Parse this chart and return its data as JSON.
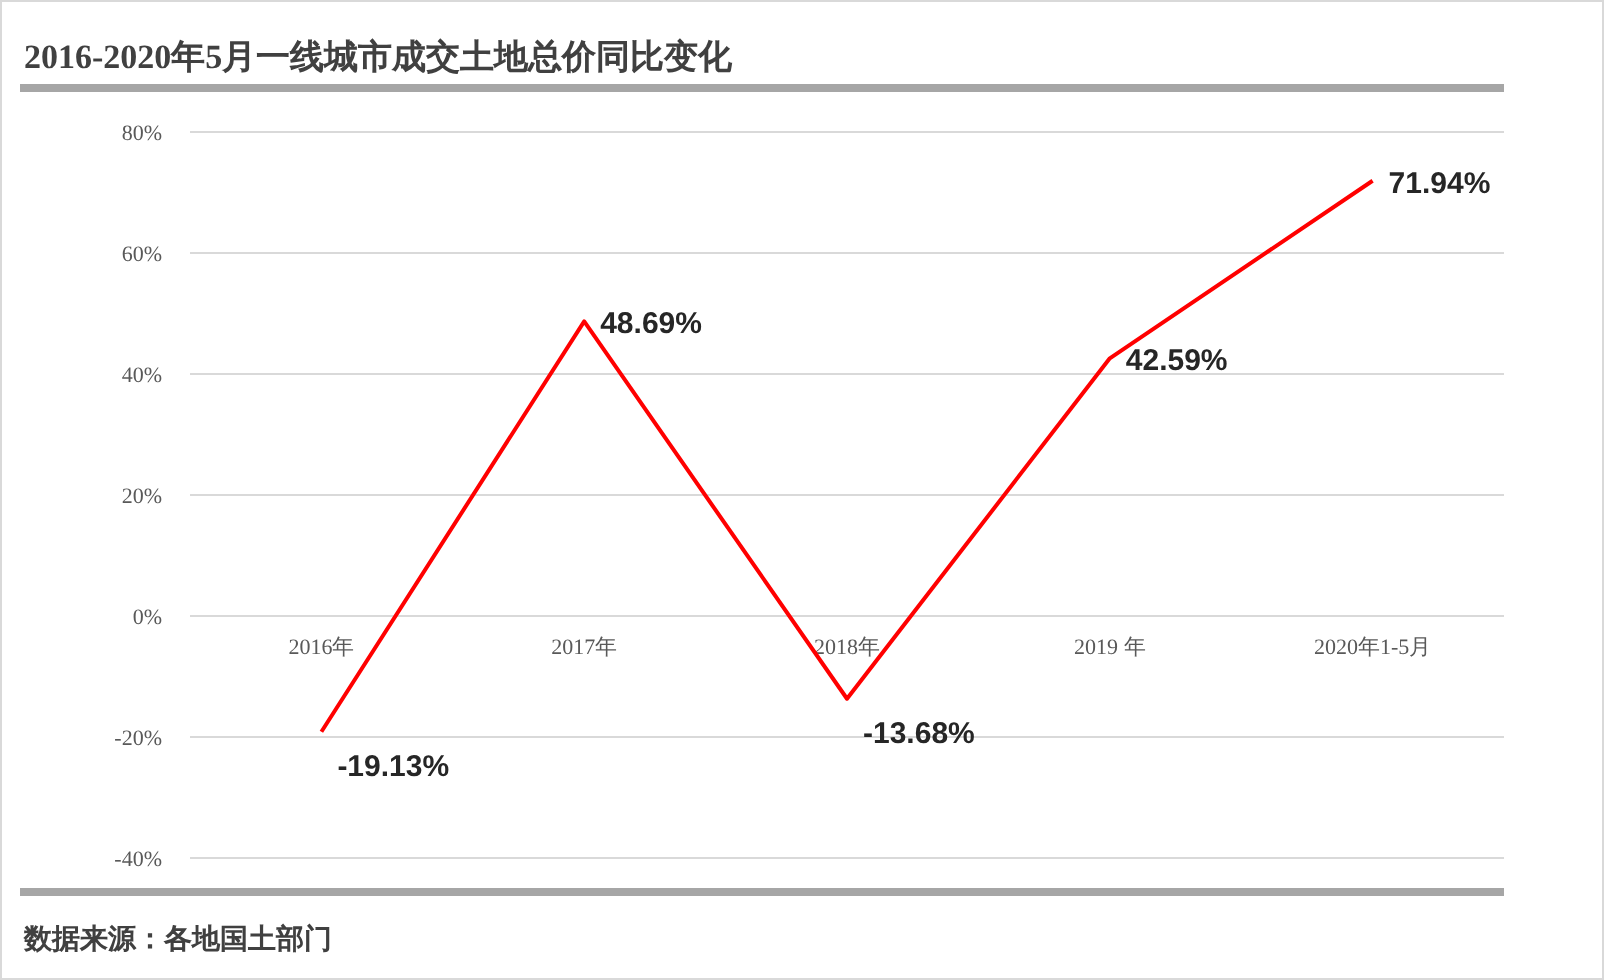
{
  "chart_data": {
    "type": "line",
    "title": "2016-2020年5月一线城市成交土地总价同比变化",
    "categories": [
      "2016年",
      "2017年",
      "2018年",
      "2019 年",
      "2020年1-5月"
    ],
    "series": [
      {
        "color": "#ff0000",
        "values": [
          -19.13,
          48.69,
          -13.68,
          42.59,
          71.94
        ],
        "value_labels": [
          "-19.13%",
          "48.69%",
          "-13.68%",
          "42.59%",
          "71.94%"
        ]
      }
    ],
    "ylim": [
      -40,
      80
    ],
    "yticks": [
      {
        "value": -40,
        "label": "-40%"
      },
      {
        "value": -20,
        "label": "-20%"
      },
      {
        "value": 0,
        "label": "0%"
      },
      {
        "value": 20,
        "label": "20%"
      },
      {
        "value": 40,
        "label": "40%"
      },
      {
        "value": 60,
        "label": "60%"
      },
      {
        "value": 80,
        "label": "80%"
      }
    ],
    "grid": "y",
    "annotations": [
      "数据来源：各地国土部门"
    ]
  }
}
